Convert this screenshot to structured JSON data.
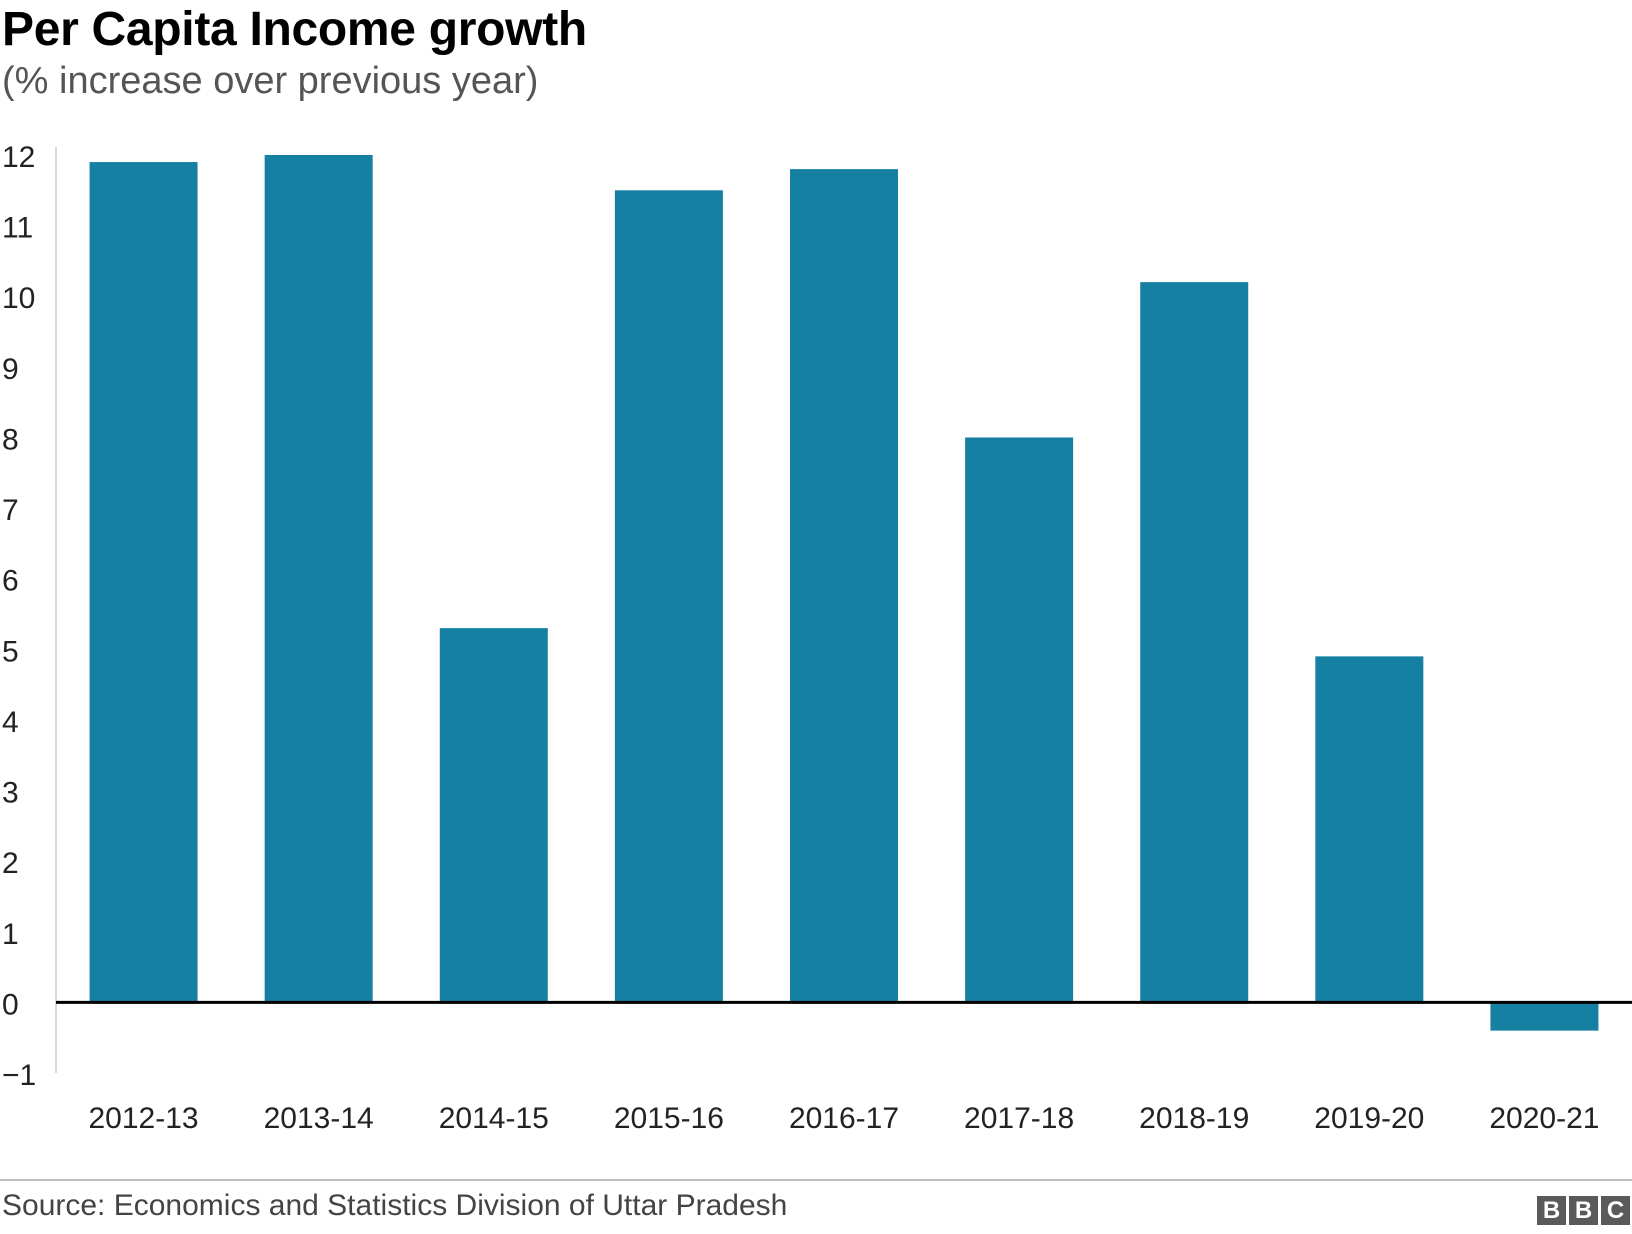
{
  "header": {
    "title": "Per Capita Income growth",
    "subtitle": "(% increase over previous year)"
  },
  "footer": {
    "source": "Source: Economics and Statistics Division of Uttar Pradesh",
    "logo_letters": [
      "B",
      "B",
      "C"
    ]
  },
  "colors": {
    "bar": "#1580a1",
    "zero_line": "#000000",
    "axis_line": "#cccccc",
    "tick_text": "#222222"
  },
  "chart_data": {
    "type": "bar",
    "title": "Per Capita Income growth",
    "subtitle": "(% increase over previous year)",
    "xlabel": "",
    "ylabel": "",
    "categories": [
      "2012-13",
      "2013-14",
      "2014-15",
      "2015-16",
      "2016-17",
      "2017-18",
      "2018-19",
      "2019-20",
      "2020-21"
    ],
    "values": [
      11.9,
      12.0,
      5.3,
      11.5,
      11.8,
      8.0,
      10.2,
      4.9,
      -0.4
    ],
    "ylim": [
      -1,
      12
    ],
    "yticks": [
      12,
      11,
      10,
      9,
      8,
      7,
      6,
      5,
      4,
      3,
      2,
      1,
      0,
      -1
    ],
    "ytick_labels": [
      "12",
      "11",
      "10",
      "9",
      "8",
      "7",
      "6",
      "5",
      "4",
      "3",
      "2",
      "1",
      "0",
      "−1"
    ],
    "grid": false,
    "legend": "none"
  }
}
